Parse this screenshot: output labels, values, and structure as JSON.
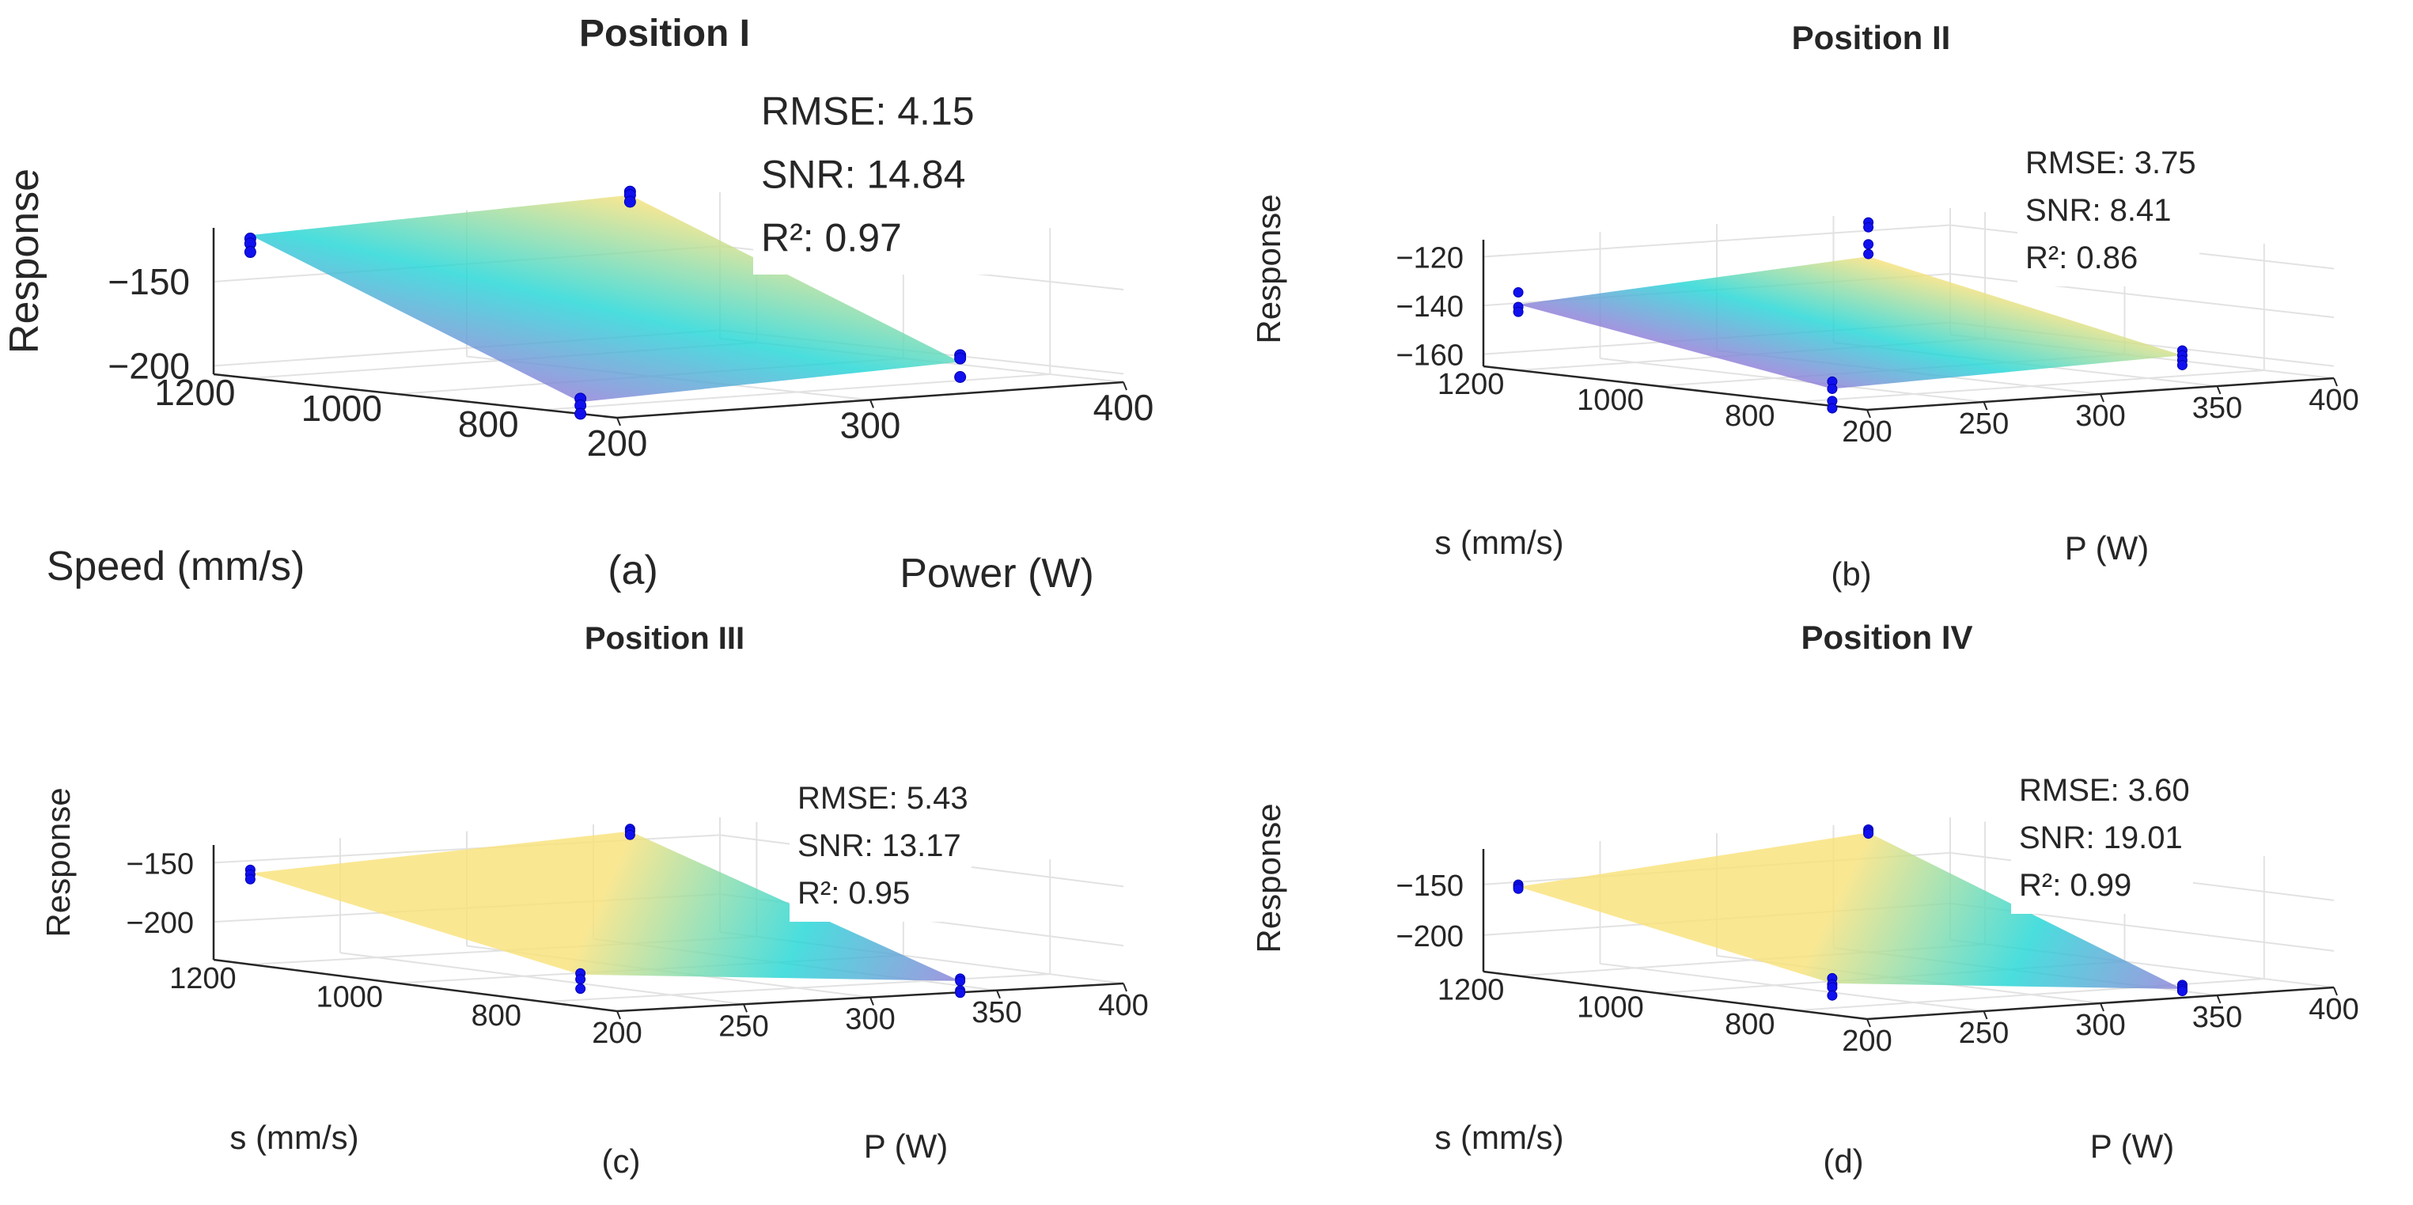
{
  "chart_data": [
    {
      "type": "surface3d",
      "panel_label": "(a)",
      "title": "Position I",
      "xlabel": "Power (W)",
      "ylabel": "Speed (mm/s)",
      "zlabel": "Response",
      "x_ticks": [
        "200",
        "300",
        "400"
      ],
      "y_ticks": [
        "800",
        "1000",
        "1200"
      ],
      "z_ticks": [
        "−150",
        "−200"
      ],
      "xlim": [
        200,
        400
      ],
      "ylim": [
        700,
        1250
      ],
      "zlim": [
        -205,
        -118
      ],
      "surface": {
        "x": [
          200,
          350
        ],
        "y": [
          750,
          1200
        ],
        "z": [
          [
            -198,
            -190
          ],
          [
            -120,
            -112
          ]
        ]
      },
      "points": [
        {
          "x": 200,
          "y": 1200,
          "z": [
            -122,
            -125,
            -130
          ]
        },
        {
          "x": 350,
          "y": 1200,
          "z": [
            -110,
            -112,
            -116
          ]
        },
        {
          "x": 200,
          "y": 750,
          "z": [
            -196,
            -200,
            -205
          ]
        },
        {
          "x": 350,
          "y": 750,
          "z": [
            -186,
            -188,
            -199
          ]
        }
      ],
      "stats": {
        "rmse": "RMSE: 4.15",
        "snr": "SNR: 14.84",
        "r2": "R²: 0.97"
      }
    },
    {
      "type": "surface3d",
      "panel_label": "(b)",
      "title": "Position II",
      "xlabel": "P (W)",
      "ylabel": "s (mm/s)",
      "zlabel": "Response",
      "x_ticks": [
        "200",
        "250",
        "300",
        "350",
        "400"
      ],
      "y_ticks": [
        "800",
        "1000",
        "1200"
      ],
      "z_ticks": [
        "−120",
        "−140",
        "−160"
      ],
      "xlim": [
        200,
        400
      ],
      "ylim": [
        700,
        1250
      ],
      "zlim": [
        -165,
        -113
      ],
      "surface": {
        "x": [
          200,
          350
        ],
        "y": [
          750,
          1200
        ],
        "z": [
          [
            -158,
            -154
          ],
          [
            -138,
            -128
          ]
        ]
      },
      "points": [
        {
          "x": 200,
          "y": 1200,
          "z": [
            -133,
            -139,
            -141
          ]
        },
        {
          "x": 350,
          "y": 1200,
          "z": [
            -114,
            -116,
            -123,
            -127
          ]
        },
        {
          "x": 200,
          "y": 750,
          "z": [
            -155,
            -158,
            -163,
            -166
          ]
        },
        {
          "x": 350,
          "y": 750,
          "z": [
            -152,
            -154,
            -156,
            -158
          ]
        }
      ],
      "stats": {
        "rmse": "RMSE: 3.75",
        "snr": "SNR: 8.41",
        "r2": "R²: 0.86"
      }
    },
    {
      "type": "surface3d",
      "panel_label": "(c)",
      "title": "Position III",
      "xlabel": "P (W)",
      "ylabel": "s (mm/s)",
      "zlabel": "Response",
      "x_ticks": [
        "200",
        "250",
        "300",
        "350",
        "400"
      ],
      "y_ticks": [
        "800",
        "1000",
        "1200"
      ],
      "z_ticks": [
        "−150",
        "−200"
      ],
      "xlim": [
        200,
        400
      ],
      "ylim": [
        700,
        1250
      ],
      "zlim": [
        -232,
        -135
      ],
      "surface": {
        "x": [
          200,
          350
        ],
        "y": [
          750,
          1200
        ],
        "z": [
          [
            -205,
            -228
          ],
          [
            -155,
            -137
          ]
        ]
      },
      "points": [
        {
          "x": 200,
          "y": 1200,
          "z": [
            -152,
            -156,
            -160
          ]
        },
        {
          "x": 350,
          "y": 1200,
          "z": [
            -135,
            -137,
            -140
          ]
        },
        {
          "x": 200,
          "y": 750,
          "z": [
            -204,
            -209,
            -217
          ]
        },
        {
          "x": 350,
          "y": 750,
          "z": [
            -226,
            -228,
            -236,
            -238
          ]
        }
      ],
      "stats": {
        "rmse": "RMSE: 5.43",
        "snr": "SNR: 13.17",
        "r2": "R²: 0.95"
      }
    },
    {
      "type": "surface3d",
      "panel_label": "(d)",
      "title": "Position IV",
      "xlabel": "P (W)",
      "ylabel": "s (mm/s)",
      "zlabel": "Response",
      "x_ticks": [
        "200",
        "250",
        "300",
        "350",
        "400"
      ],
      "y_ticks": [
        "800",
        "1000",
        "1200"
      ],
      "z_ticks": [
        "−150",
        "−200"
      ],
      "xlim": [
        200,
        400
      ],
      "ylim": [
        700,
        1250
      ],
      "zlim": [
        -236,
        -115
      ],
      "surface": {
        "x": [
          200,
          350
        ],
        "y": [
          750,
          1200
        ],
        "z": [
          [
            -205,
            -234
          ],
          [
            -148,
            -118
          ]
        ]
      },
      "points": [
        {
          "x": 200,
          "y": 1200,
          "z": [
            -146,
            -148,
            -150
          ]
        },
        {
          "x": 350,
          "y": 1200,
          "z": [
            -115,
            -117,
            -119
          ]
        },
        {
          "x": 200,
          "y": 750,
          "z": [
            -200,
            -206,
            -209,
            -217
          ]
        },
        {
          "x": 350,
          "y": 750,
          "z": [
            -230,
            -232,
            -234,
            -236
          ]
        }
      ],
      "stats": {
        "rmse": "RMSE: 3.60",
        "snr": "SNR: 19.01",
        "r2": "R²: 0.99"
      }
    }
  ],
  "colors": {
    "marker": "#1010ee",
    "axis": "#262626",
    "grid": "#e2e2e2",
    "surface_high": "#f9e27a",
    "surface_mid": "#22d6d6",
    "surface_low": "#8e7fd8"
  }
}
